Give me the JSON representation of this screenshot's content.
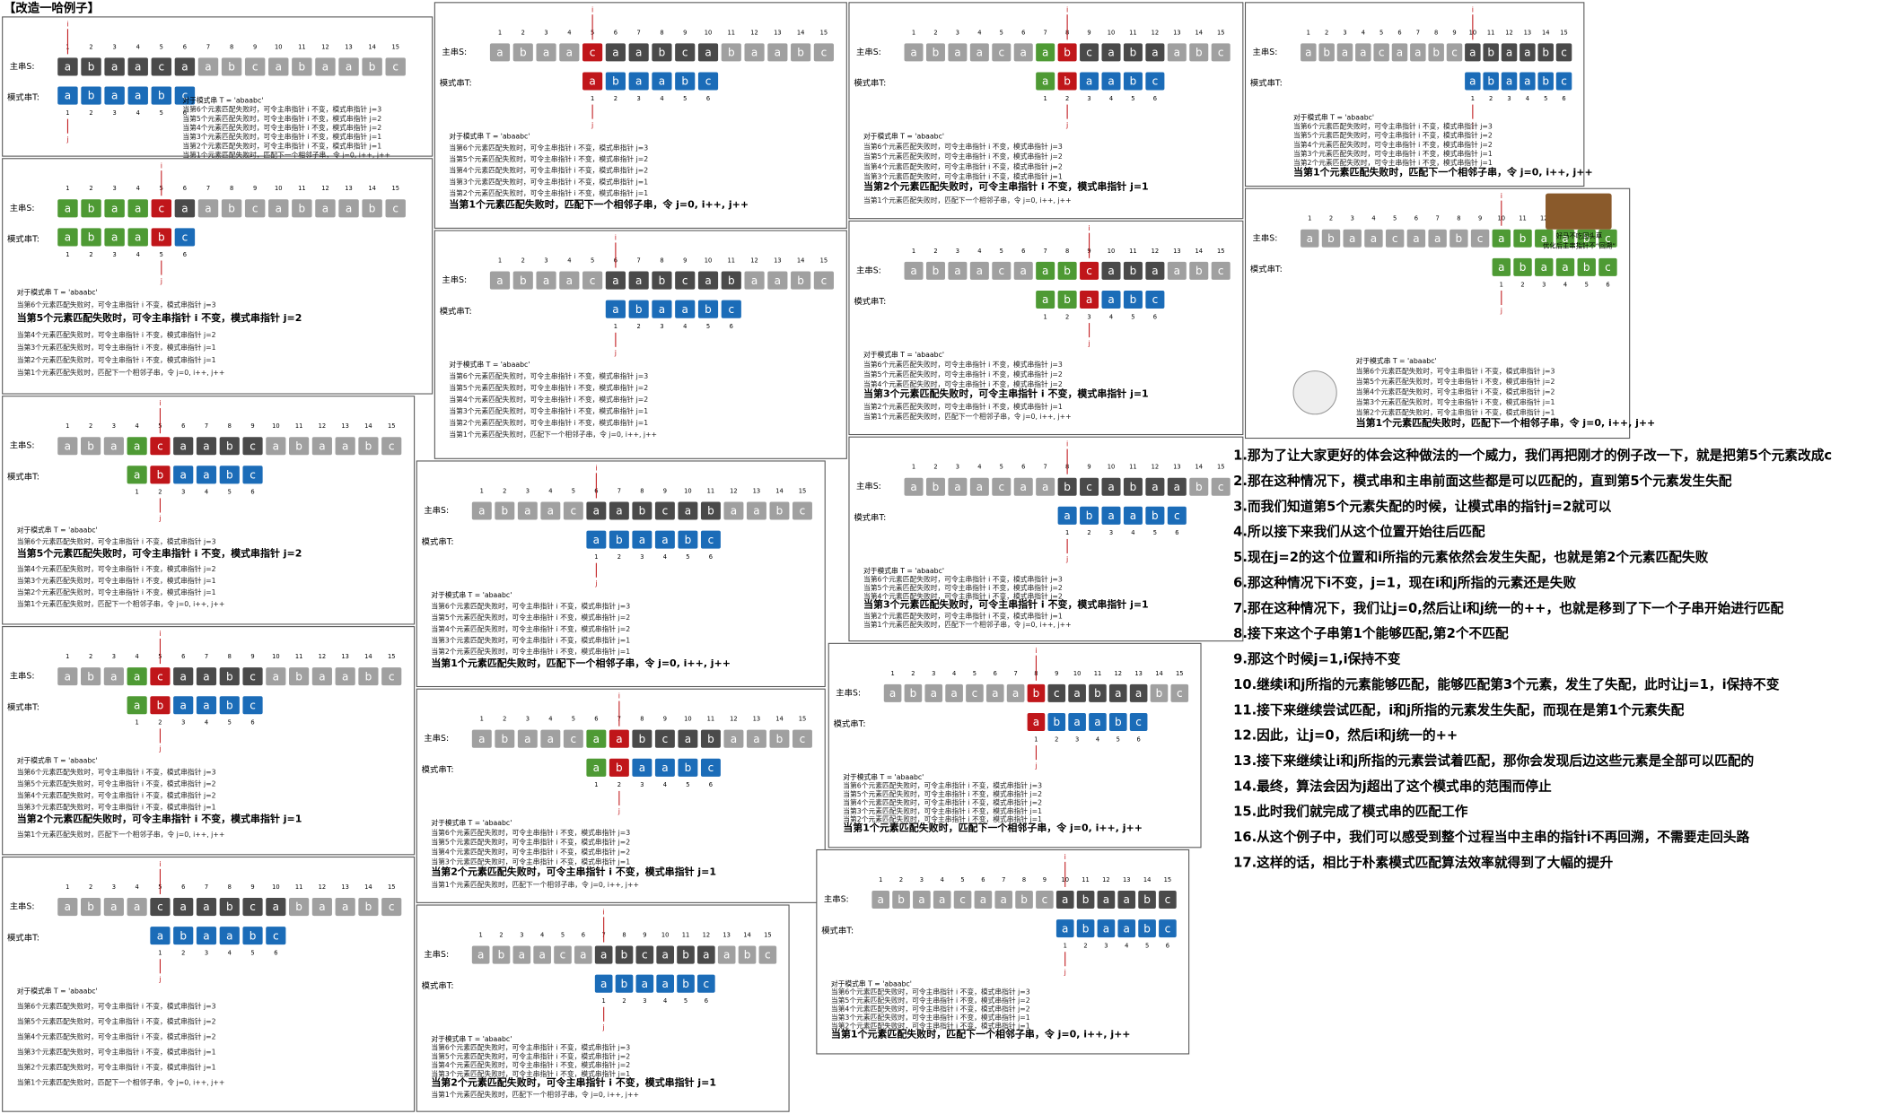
{
  "title": "【改造一哈例子】",
  "labels": {
    "main": "主串S:",
    "pattern": "模式串T:",
    "i": "i",
    "j": "j"
  },
  "main_string": [
    "a",
    "b",
    "a",
    "a",
    "c",
    "a",
    "a",
    "b",
    "c",
    "a",
    "b",
    "a",
    "a",
    "b",
    "c"
  ],
  "main_indices": [
    1,
    2,
    3,
    4,
    5,
    6,
    7,
    8,
    9,
    10,
    11,
    12,
    13,
    14,
    15
  ],
  "pattern": [
    "a",
    "b",
    "a",
    "a",
    "b",
    "c"
  ],
  "pattern_indices": [
    1,
    2,
    3,
    4,
    5,
    6
  ],
  "rule_lines": [
    "对于模式串 T = 'abaabc'",
    "当第6个元素匹配失败时，可令主串指针 i 不变，模式串指针 j=3",
    "当第5个元素匹配失败时，可令主串指针 i 不变，模式串指针 j=2",
    "当第4个元素匹配失败时，可令主串指针 i 不变，模式串指针 j=2",
    "当第3个元素匹配失败时，可令主串指针 i 不变，模式串指针 j=1",
    "当第2个元素匹配失败时，可令主串指针 i 不变，模式串指针 j=1",
    "当第1个元素匹配失败时，匹配下一个相邻子串，令 j=0, i++, j++"
  ],
  "panels": [
    {
      "offset": 1,
      "matched": 0,
      "fail": null,
      "highlight": null
    },
    {
      "offset": 1,
      "matched": 4,
      "fail": 5,
      "highlight": 2
    },
    {
      "offset": 4,
      "matched": 1,
      "fail": 2,
      "highlight": 2
    },
    {
      "offset": 4,
      "matched": 1,
      "fail": 2,
      "highlight": 5
    },
    {
      "offset": 5,
      "matched": 0,
      "fail": null,
      "highlight": null
    },
    {
      "offset": 5,
      "matched": 0,
      "fail": 1,
      "highlight": 6
    },
    {
      "offset": 6,
      "matched": 0,
      "fail": null,
      "highlight": null
    },
    {
      "offset": 6,
      "matched": 0,
      "fail": null,
      "highlight": 6
    },
    {
      "offset": 6,
      "matched": 1,
      "fail": 2,
      "highlight": 5
    },
    {
      "offset": 7,
      "matched": 0,
      "fail": null,
      "highlight": 5
    },
    {
      "offset": 7,
      "matched": 1,
      "fail": 2,
      "highlight": 5
    },
    {
      "offset": 7,
      "matched": 2,
      "fail": 3,
      "highlight": 4
    },
    {
      "offset": 8,
      "matched": 0,
      "fail": null,
      "highlight": 4
    },
    {
      "offset": 8,
      "matched": 0,
      "fail": 1,
      "highlight": 6
    },
    {
      "offset": 10,
      "matched": 0,
      "fail": null,
      "highlight": 6
    },
    {
      "offset": 10,
      "matched": 0,
      "fail": null,
      "highlight": 6
    },
    {
      "offset": 10,
      "matched": 6,
      "fail": null,
      "highlight": 6
    }
  ],
  "meme": {
    "caption": [
      "好马不吃回头草",
      "优化后主串指针不“回溯”"
    ]
  },
  "notes": [
    "1.那为了让大家更好的体会这种做法的一个威力，我们再把刚才的例子改一下，就是把第5个元素改成c",
    "2.那在这种情况下，模式串和主串前面这些都是可以匹配的，直到第5个元素发生失配",
    "3.而我们知道第5个元素失配的时候，让模式串的指针j=2就可以",
    "4.所以接下来我们从这个位置开始往后匹配",
    "5.现在j=2的这个位置和i所指的元素依然会发生失配，也就是第2个元素匹配失败",
    "6.那这种情况下i不变，j=1，现在i和j所指的元素还是失败",
    "7.那在这种情况下，我们让j=0,然后让i和j统一的++，也就是移到了下一个子串开始进行匹配",
    "8.接下来这个子串第1个能够匹配,第2个不匹配",
    "9.那这个时候j=1,i保持不变",
    "10.继续i和j所指的元素能够匹配，能够匹配第3个元素，发生了失配，此时让j=1，i保持不变",
    "11.接下来继续尝试匹配，i和j所指的元素发生失配，而现在是第1个元素失配",
    "12.因此，让j=0，然后i和j统一的++",
    "13.接下来继续让i和j所指的元素尝试着匹配，那你会发现后边这些元素是全部可以匹配的",
    "14.最终，算法会因为j超出了这个模式串的范围而停止",
    "15.此时我们就完成了模式串的匹配工作",
    "16.从这个例子中，我们可以感受到整个过程当中主串的指针i不再回溯，不需要走回头路",
    "17.这样的话，相比于朴素模式匹配算法效率就得到了大幅的提升"
  ]
}
